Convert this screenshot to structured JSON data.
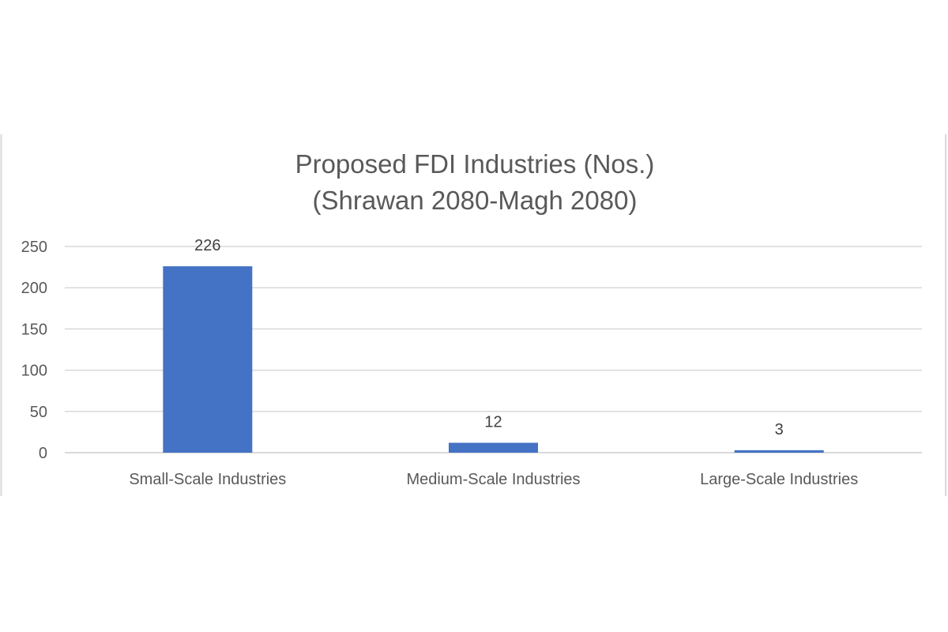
{
  "chart_data": {
    "type": "bar",
    "title": [
      "Proposed FDI Industries (Nos.)",
      "(Shrawan 2080-Magh 2080)"
    ],
    "categories": [
      "Small-Scale Industries",
      "Medium-Scale Industries",
      "Large-Scale Industries"
    ],
    "values": [
      226,
      12,
      3
    ],
    "data_labels": [
      "226",
      "12",
      "3"
    ],
    "xlabel": "",
    "ylabel": "",
    "ylim": [
      0,
      250
    ],
    "yticks": [
      0,
      50,
      100,
      150,
      200,
      250
    ],
    "grid": true,
    "legend": "none",
    "bar_color": "#4472C4",
    "grid_color": "#D9D9D9",
    "text_color": "#595959"
  }
}
